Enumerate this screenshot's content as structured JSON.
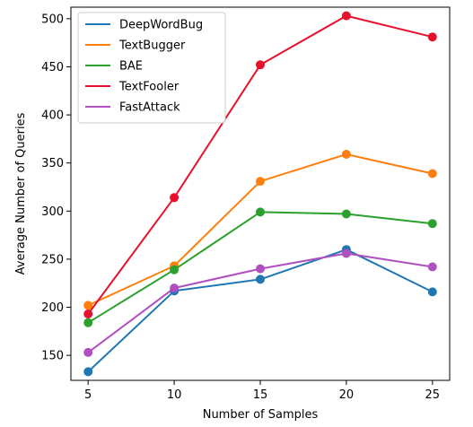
{
  "chart_data": {
    "type": "line",
    "title": "",
    "xlabel": "Number of Samples",
    "ylabel": "Average Number of Queries",
    "x": [
      5,
      10,
      15,
      20,
      25
    ],
    "xticks": [
      5,
      10,
      15,
      20,
      25
    ],
    "yticks": [
      150,
      200,
      250,
      300,
      350,
      400,
      450,
      500
    ],
    "xlim": [
      4,
      26
    ],
    "ylim": [
      124,
      512
    ],
    "grid": false,
    "legend_position": "top-left",
    "series": [
      {
        "name": "DeepWordBug",
        "color": "#1f77b4",
        "values": [
          133,
          217,
          229,
          260,
          216
        ]
      },
      {
        "name": "TextBugger",
        "color": "#ff7f0e",
        "values": [
          202,
          243,
          331,
          359,
          339
        ]
      },
      {
        "name": "BAE",
        "color": "#2ca02c",
        "values": [
          184,
          239,
          299,
          297,
          287
        ]
      },
      {
        "name": "TextFooler",
        "color": "#e8112d",
        "values": [
          193,
          314,
          452,
          503,
          481
        ]
      },
      {
        "name": "FastAttack",
        "color": "#b04fbf",
        "values": [
          153,
          220,
          240,
          256,
          242
        ]
      }
    ]
  }
}
